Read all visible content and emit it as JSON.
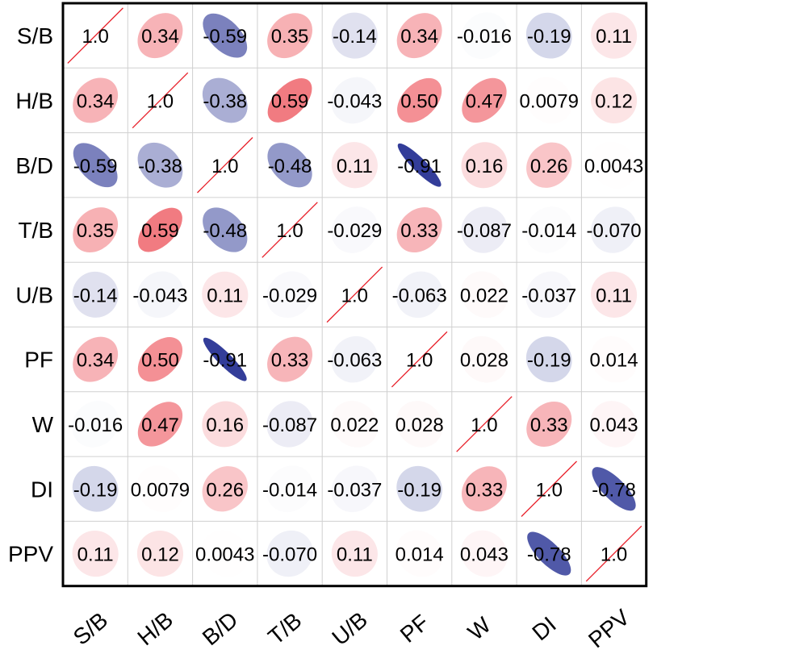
{
  "chart_data": {
    "type": "heatmap",
    "subtype": "correlation-ellipse-matrix",
    "variables": [
      "S/B",
      "H/B",
      "B/D",
      "T/B",
      "U/B",
      "PF",
      "W",
      "DI",
      "PPV"
    ],
    "matrix_labels": [
      [
        "1.0",
        "0.34",
        "-0.59",
        "0.35",
        "-0.14",
        "0.34",
        "-0.016",
        "-0.19",
        "0.11"
      ],
      [
        "0.34",
        "1.0",
        "-0.38",
        "0.59",
        "-0.043",
        "0.50",
        "0.47",
        "0.0079",
        "0.12"
      ],
      [
        "-0.59",
        "-0.38",
        "1.0",
        "-0.48",
        "0.11",
        "-0.91",
        "0.16",
        "0.26",
        "0.0043"
      ],
      [
        "0.35",
        "0.59",
        "-0.48",
        "1.0",
        "-0.029",
        "0.33",
        "-0.087",
        "-0.014",
        "-0.070"
      ],
      [
        "-0.14",
        "-0.043",
        "0.11",
        "-0.029",
        "1.0",
        "-0.063",
        "0.022",
        "-0.037",
        "0.11"
      ],
      [
        "0.34",
        "0.50",
        "-0.91",
        "0.33",
        "-0.063",
        "1.0",
        "0.028",
        "-0.19",
        "0.014"
      ],
      [
        "-0.016",
        "0.47",
        "0.16",
        "-0.087",
        "0.022",
        "0.028",
        "1.0",
        "0.33",
        "0.043"
      ],
      [
        "-0.19",
        "0.0079",
        "0.26",
        "-0.014",
        "-0.037",
        "-0.19",
        "0.33",
        "1.0",
        "-0.78"
      ],
      [
        "0.11",
        "0.12",
        "0.0043",
        "-0.070",
        "0.11",
        "0.014",
        "0.043",
        "-0.78",
        "1.0"
      ]
    ],
    "color_scale": {
      "negative": "#1f2a8f",
      "neutral": "#ffffff",
      "positive": "#e8202a"
    },
    "diagonal_line_color": "#e8202a",
    "grid_color": "#d0d0d0",
    "frame_color": "#000000"
  }
}
